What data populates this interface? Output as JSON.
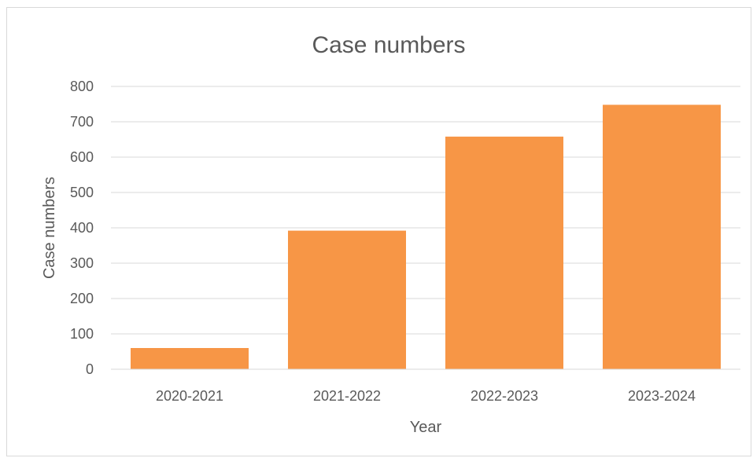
{
  "chart_data": {
    "type": "bar",
    "title": "Case numbers",
    "xlabel": "Year",
    "ylabel": "Case numbers",
    "categories": [
      "2020-2021",
      "2021-2022",
      "2022-2023",
      "2023-2024"
    ],
    "values": [
      60,
      392,
      658,
      748
    ],
    "ylim": [
      0,
      800
    ],
    "yticks": [
      0,
      100,
      200,
      300,
      400,
      500,
      600,
      700,
      800
    ],
    "grid": true,
    "legend": "none",
    "bar_color": "#F79646",
    "gridline_color": "#D9D9D9",
    "text_color": "#595959"
  }
}
